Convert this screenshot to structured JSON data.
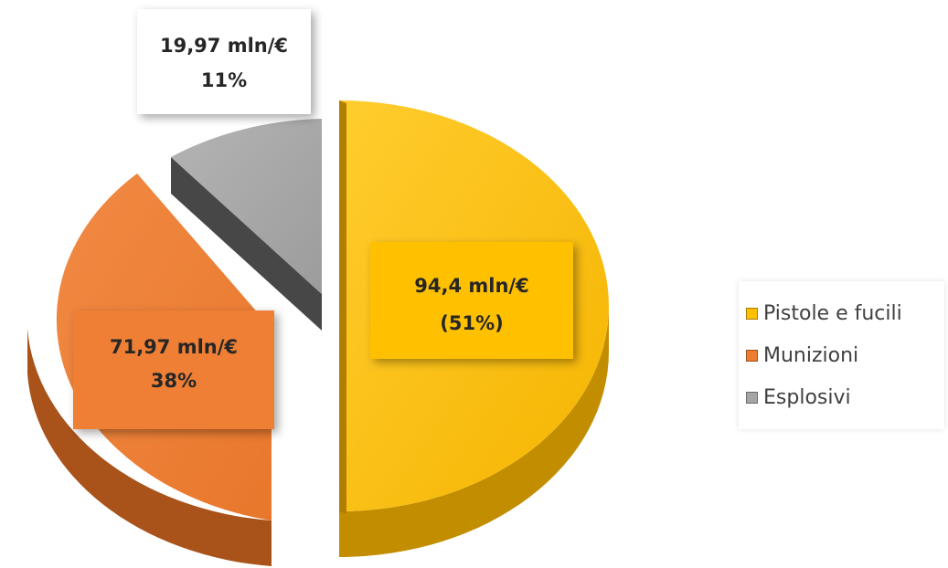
{
  "chart_data": {
    "type": "pie",
    "title": "",
    "slices": [
      {
        "name": "Pistole e fucili",
        "value": 94.4,
        "label_value": "94,4 mln/€",
        "label_pct": "(51%)",
        "color": "#FFC000",
        "side_color": "#C08F00"
      },
      {
        "name": "Munizioni",
        "value": 71.97,
        "label_value": "71,97 mln/€",
        "label_pct": "38%",
        "color": "#ED7D31",
        "side_color": "#A9531B"
      },
      {
        "name": "Esplosivi",
        "value": 19.97,
        "label_value": "19,97 mln/€",
        "label_pct": "11%",
        "color": "#A5A5A5",
        "side_color": "#4A4A4A"
      }
    ],
    "legend": {
      "position": "right",
      "items": [
        "Pistole e fucili",
        "Munizioni",
        "Esplosivi"
      ]
    }
  }
}
